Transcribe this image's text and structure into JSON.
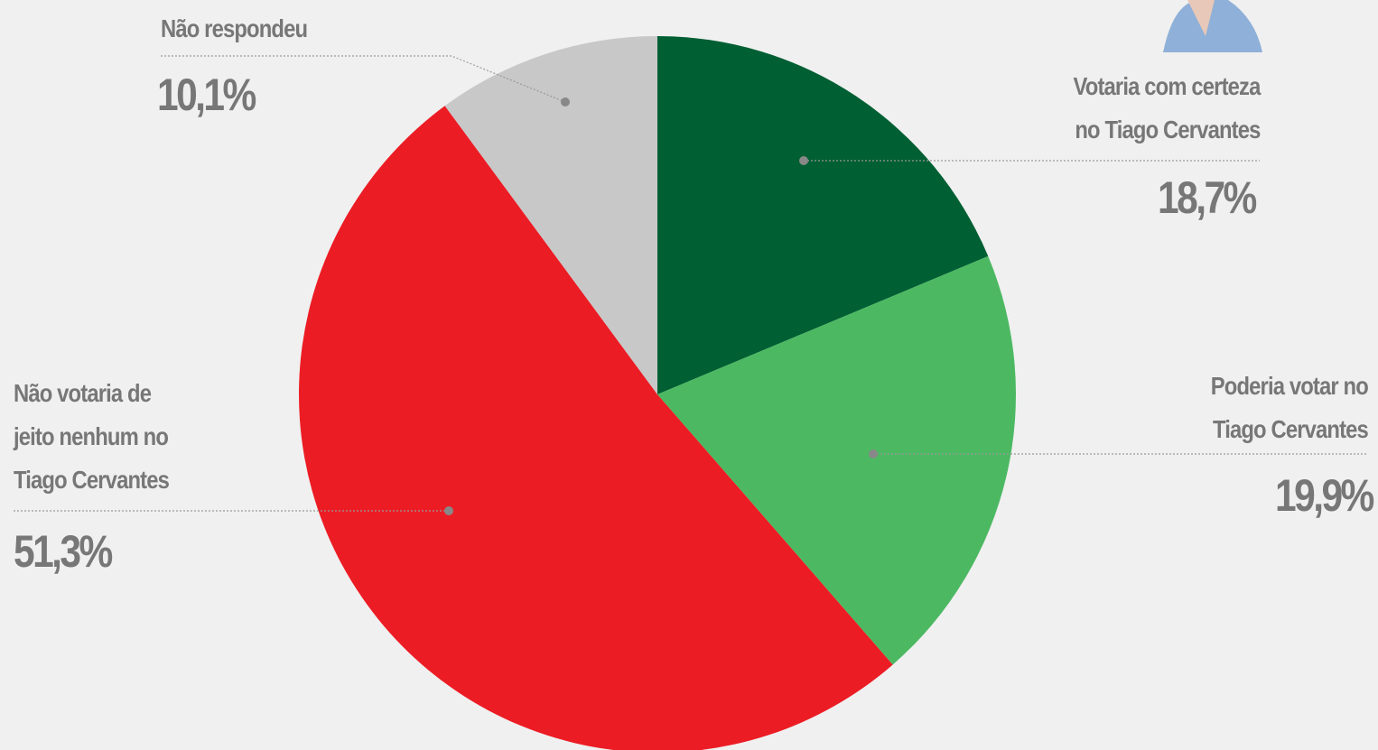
{
  "chart_data": {
    "type": "pie",
    "categories": [
      "Votaria com certeza\nno Tiago Cervantes",
      "Poderia votar no\nTiago Cervantes",
      "Não votaria de\njeito nenhum no\nTiago Cervantes",
      "Não respondeu"
    ],
    "values": [
      18.7,
      19.9,
      51.3,
      10.1
    ],
    "value_labels": [
      "18,7%",
      "19,9%",
      "51,3%",
      "10,1%"
    ],
    "colors": [
      "#005f33",
      "#4cb962",
      "#ec1c24",
      "#c8c8c8"
    ]
  }
}
